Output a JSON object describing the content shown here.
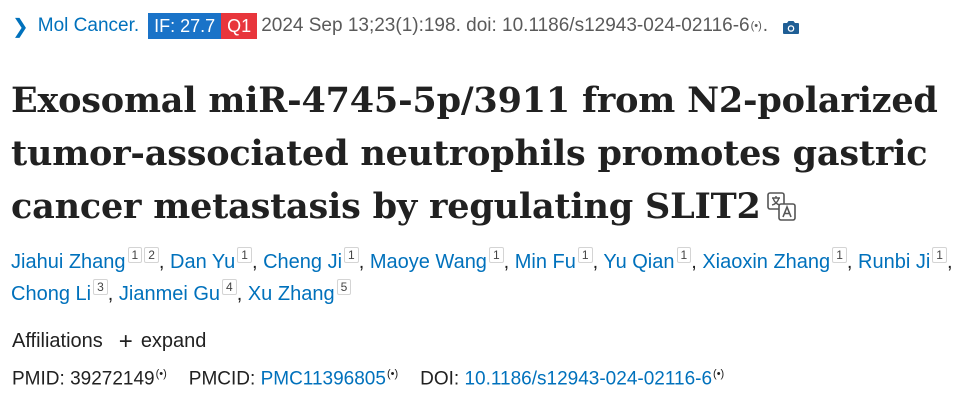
{
  "citation": {
    "journal": "Mol Cancer.",
    "if_badge": "IF: 27.7",
    "quartile_badge": "Q1",
    "text": "2024 Sep 13;23(1):198. doi: 10.1186/s12943-024-02116-6",
    "trailing": ".",
    "colors": {
      "link": "#0071bc",
      "if_bg": "#1a73c8",
      "q_bg": "#e8363c"
    }
  },
  "title": "Exosomal miR-4745-5p/3911 from N2-polarized tumor-associated neutrophils promotes gastric cancer metastasis by regulating SLIT2",
  "authors": [
    {
      "name": "Jiahui Zhang",
      "affs": [
        "1",
        "2"
      ]
    },
    {
      "name": "Dan Yu",
      "affs": [
        "1"
      ]
    },
    {
      "name": "Cheng Ji",
      "affs": [
        "1"
      ]
    },
    {
      "name": "Maoye Wang",
      "affs": [
        "1"
      ]
    },
    {
      "name": "Min Fu",
      "affs": [
        "1"
      ]
    },
    {
      "name": "Yu Qian",
      "affs": [
        "1"
      ]
    },
    {
      "name": "Xiaoxin Zhang",
      "affs": [
        "1"
      ]
    },
    {
      "name": "Runbi Ji",
      "affs": [
        "1"
      ]
    },
    {
      "name": "Chong Li",
      "affs": [
        "3"
      ]
    },
    {
      "name": "Jianmei Gu",
      "affs": [
        "4"
      ]
    },
    {
      "name": "Xu Zhang",
      "affs": [
        "5"
      ]
    }
  ],
  "affiliations": {
    "label": "Affiliations",
    "expand_label": "expand"
  },
  "identifiers": {
    "pmid_label": "PMID:",
    "pmid": "39272149",
    "pmcid_label": "PMCID:",
    "pmcid": "PMC11396805",
    "doi_label": "DOI:",
    "doi": "10.1186/s12943-024-02116-6"
  },
  "icons": [
    "chevron-right-icon",
    "broadcast-icon",
    "camera-icon",
    "translate-icon",
    "plus-icon"
  ]
}
